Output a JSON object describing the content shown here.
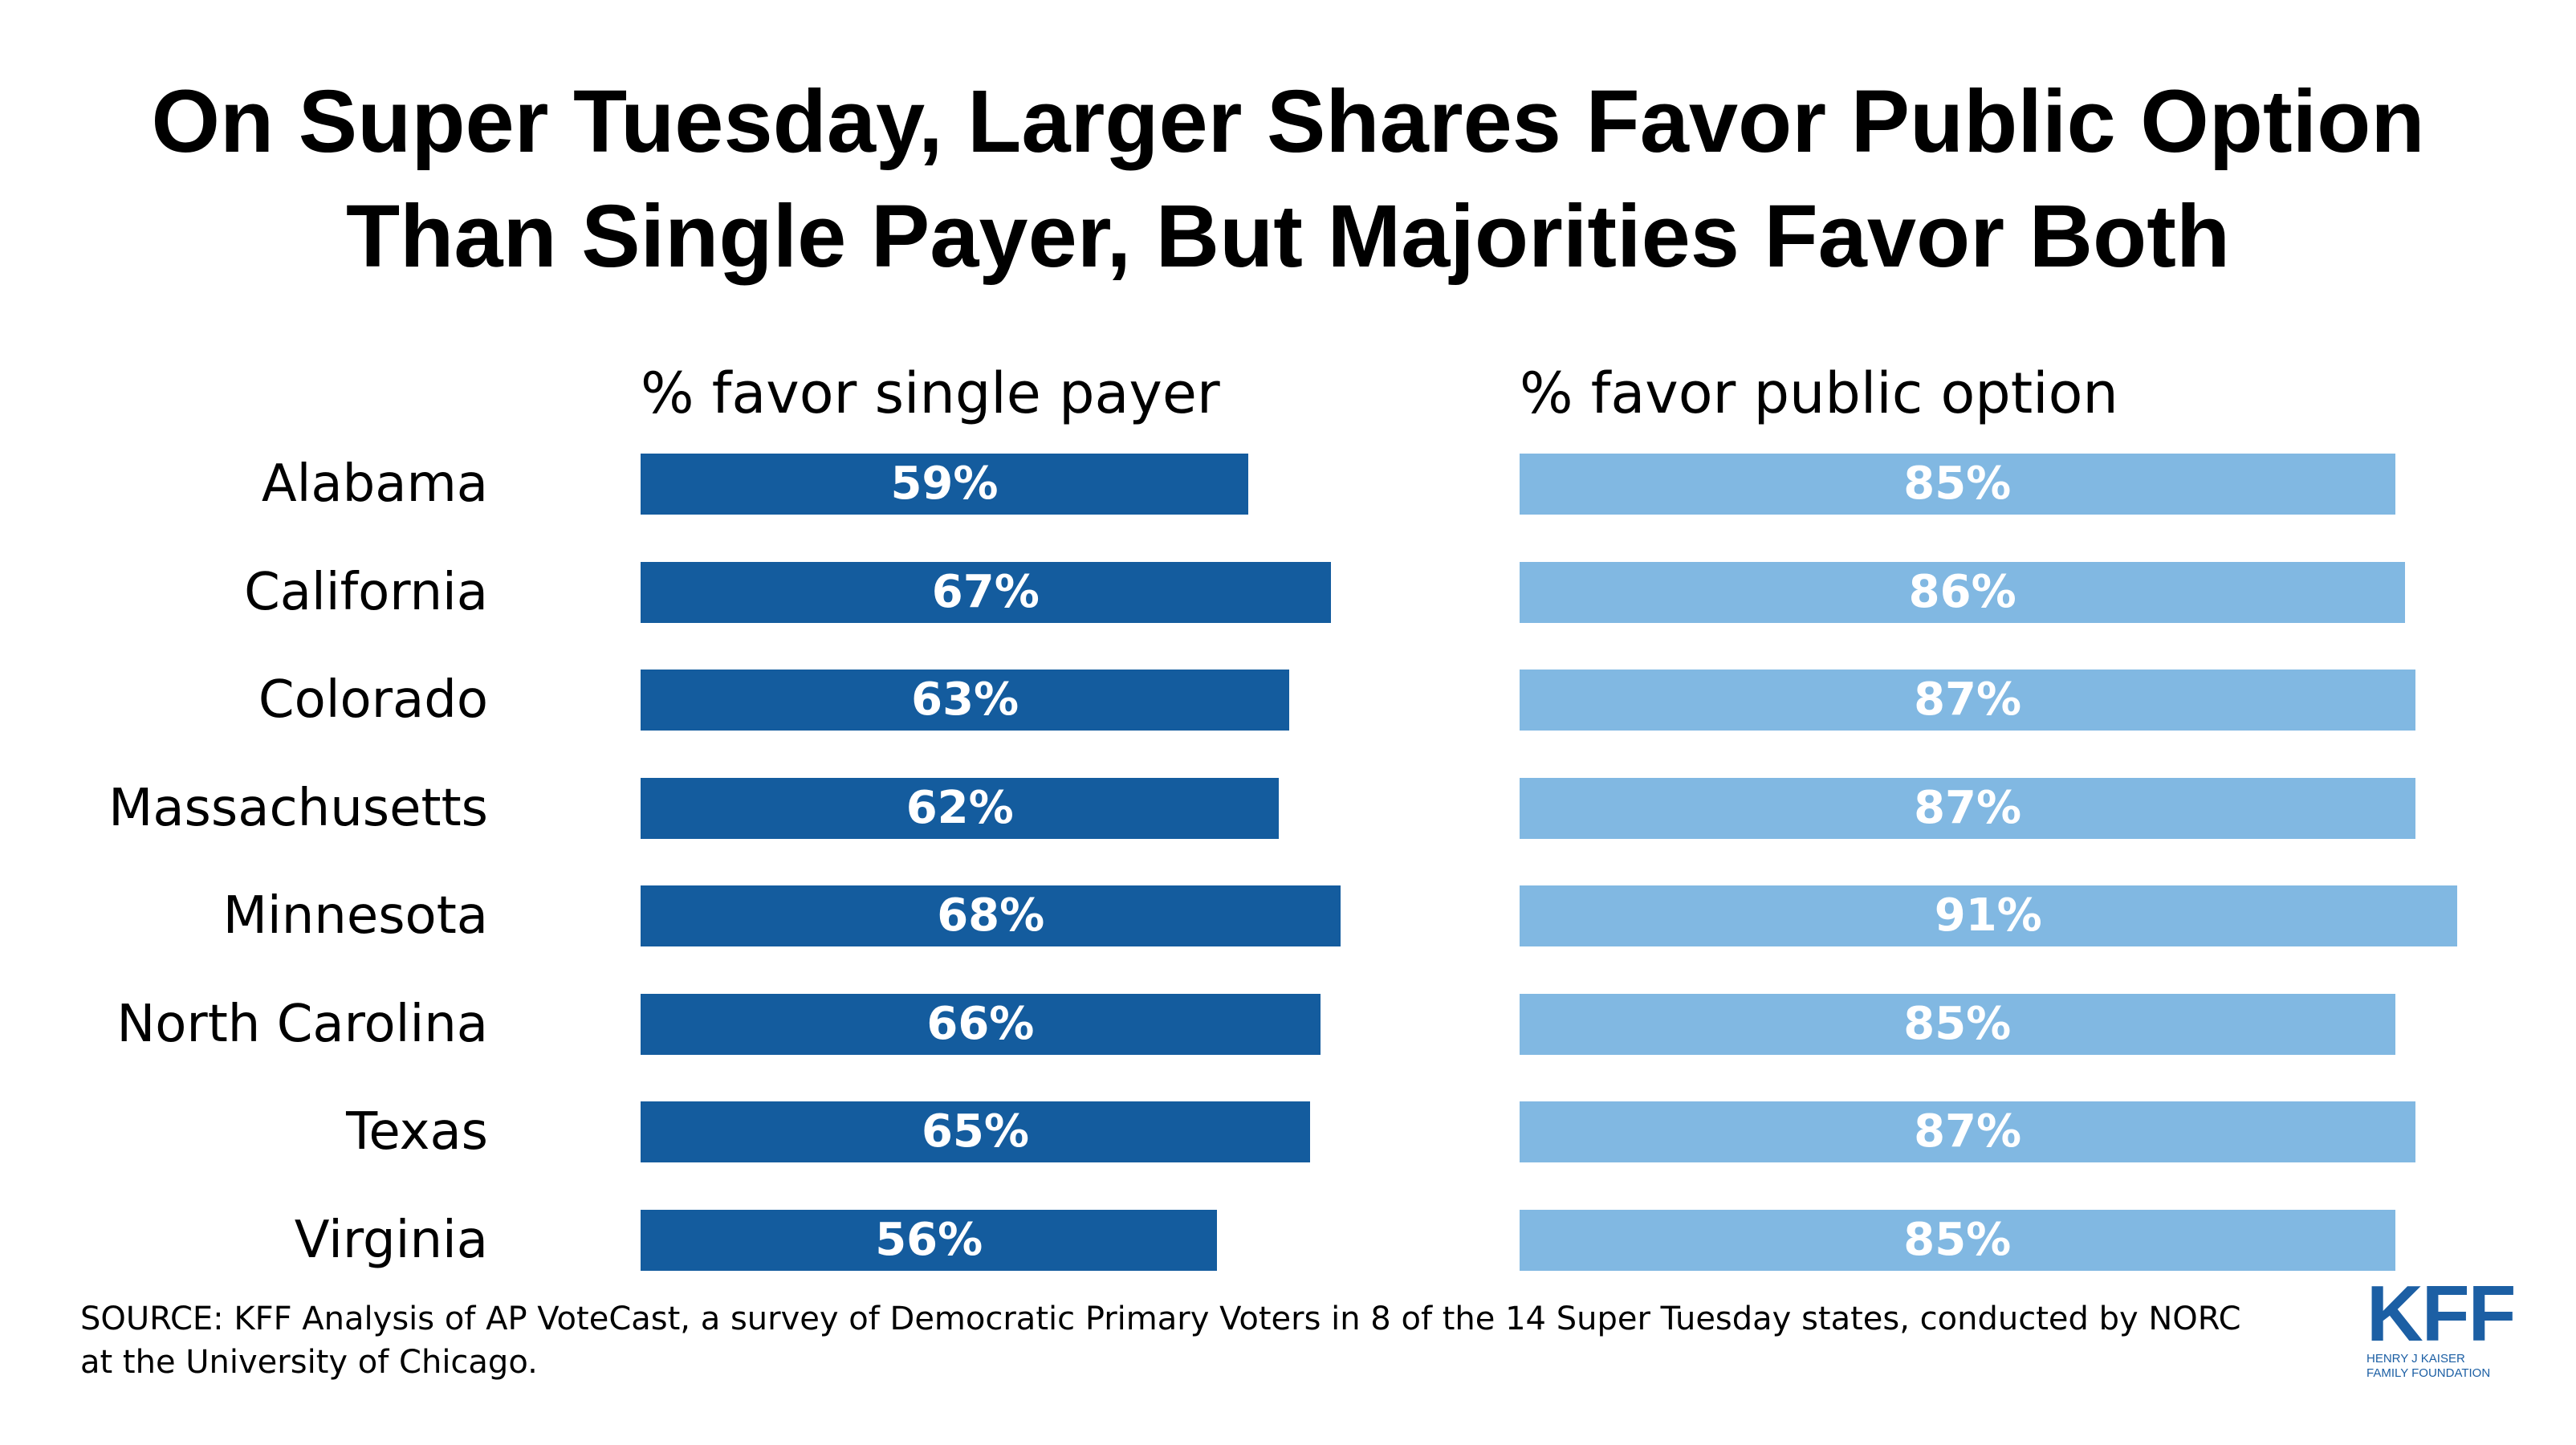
{
  "title_lines": [
    "On Super Tuesday, Larger Shares Favor Public Option",
    "Than Single Payer, But Majorities Favor Both"
  ],
  "source": "SOURCE: KFF Analysis of AP VoteCast, a survey of Democratic Primary Voters in 8 of the 14 Super Tuesday states, conducted by NORC at the University of Chicago.",
  "logo": {
    "mark": "KFF",
    "sub_line1": "HENRY J KAISER",
    "sub_line2": "FAMILY FOUNDATION",
    "color": "#1c5fa4"
  },
  "chart_data": {
    "type": "bar",
    "orientation": "horizontal",
    "categories": [
      "Alabama",
      "California",
      "Colorado",
      "Massachusetts",
      "Minnesota",
      "North Carolina",
      "Texas",
      "Virginia"
    ],
    "unit": "%",
    "series": [
      {
        "name": "% favor single payer",
        "values": [
          59,
          67,
          63,
          62,
          68,
          66,
          65,
          56
        ],
        "color": "#145c9e"
      },
      {
        "name": "% favor public option",
        "values": [
          85,
          86,
          87,
          87,
          91,
          85,
          87,
          85
        ],
        "color": "#81b8e2"
      }
    ],
    "layout": "small multiples, side by side panels",
    "data_labels": "inside bar, centered, white bold",
    "grid": false
  }
}
